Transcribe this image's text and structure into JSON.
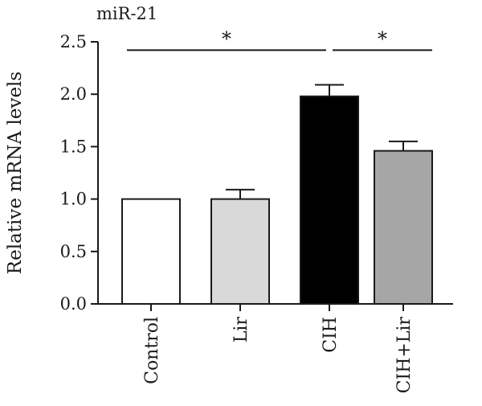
{
  "chart_data": {
    "type": "bar",
    "title": "miR-21",
    "ylabel": "Relative mRNA levels",
    "xlabel": "",
    "ylim": [
      0,
      2.5
    ],
    "yticks": [
      "0.0",
      "0.5",
      "1.0",
      "1.5",
      "2.0",
      "2.5"
    ],
    "ytick_values": [
      0,
      0.5,
      1.0,
      1.5,
      2.0,
      2.5
    ],
    "categories": [
      "Control",
      "Lir",
      "CIH",
      "CIH+Lir"
    ],
    "values": [
      1.0,
      1.0,
      1.98,
      1.46
    ],
    "errors": [
      0,
      0.09,
      0.11,
      0.09
    ],
    "bar_colors": [
      "#ffffff",
      "#d9d9d9",
      "#000000",
      "#a6a6a6"
    ],
    "grid": false,
    "significance": [
      {
        "from": 0,
        "to": 2,
        "label": "*",
        "level": 2.42
      },
      {
        "from": 2,
        "to": 3,
        "label": "*",
        "level": 2.42
      }
    ]
  }
}
